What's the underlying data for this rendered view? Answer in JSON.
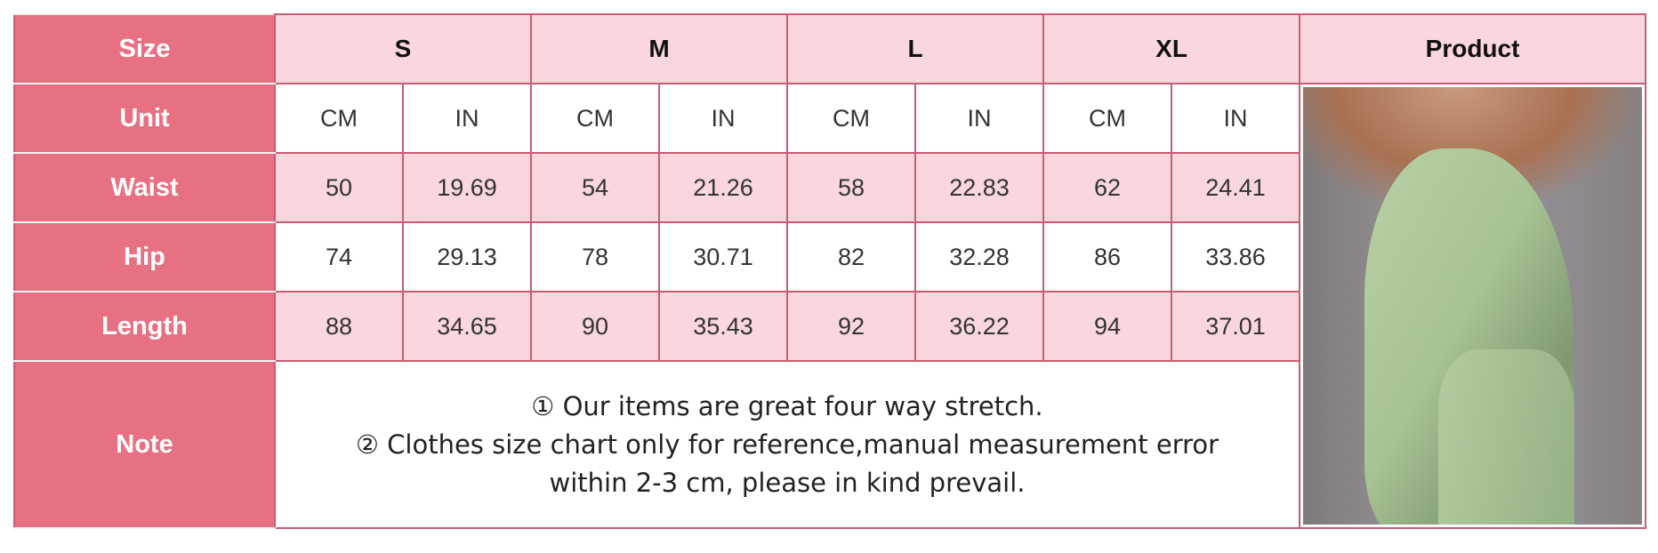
{
  "header": {
    "size_label": "Size",
    "sizes": [
      "S",
      "M",
      "L",
      "XL"
    ],
    "product_label": "Product"
  },
  "units": {
    "label": "Unit",
    "values": [
      "CM",
      "IN",
      "CM",
      "IN",
      "CM",
      "IN",
      "CM",
      "IN"
    ]
  },
  "rows": [
    {
      "label": "Waist",
      "values": [
        "50",
        "19.69",
        "54",
        "21.26",
        "58",
        "22.83",
        "62",
        "24.41"
      ]
    },
    {
      "label": "Hip",
      "values": [
        "74",
        "29.13",
        "78",
        "30.71",
        "82",
        "32.28",
        "86",
        "33.86"
      ]
    },
    {
      "label": "Length",
      "values": [
        "88",
        "34.65",
        "90",
        "35.43",
        "92",
        "36.22",
        "94",
        "37.01"
      ]
    }
  ],
  "note": {
    "label": "Note",
    "line1": "① Our items are great four way stretch.",
    "line2": "② Clothes size chart only for reference,manual measurement error",
    "line3": "within 2-3 cm, please in kind prevail."
  },
  "colors": {
    "label_bg": "#e87083",
    "pink_row": "#f9d7dd",
    "border": "#c95c72",
    "legging": "#a9c495"
  }
}
